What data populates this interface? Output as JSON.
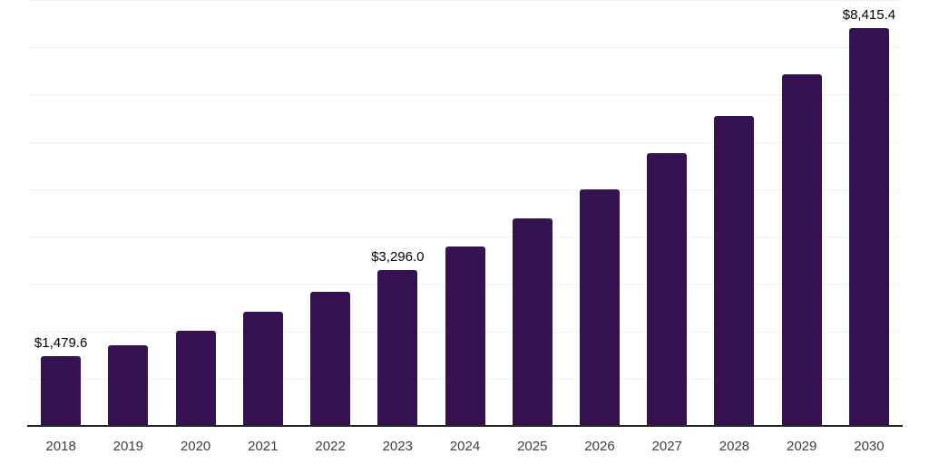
{
  "chart_data": {
    "type": "bar",
    "title": "",
    "xlabel": "",
    "ylabel": "",
    "categories": [
      "2018",
      "2019",
      "2020",
      "2021",
      "2022",
      "2023",
      "2024",
      "2025",
      "2026",
      "2027",
      "2028",
      "2029",
      "2030"
    ],
    "values": [
      1479.6,
      1705.0,
      2010.0,
      2420.0,
      2835.0,
      3296.0,
      3800.0,
      4390.0,
      5005.0,
      5755.0,
      6540.0,
      7430.0,
      8415.4
    ],
    "data_labels": [
      "$1,479.6",
      null,
      null,
      null,
      null,
      "$3,296.0",
      null,
      null,
      null,
      null,
      null,
      null,
      "$8,415.4"
    ],
    "ylim": [
      0,
      9000
    ],
    "gridline_step": 1000,
    "grid": "horizontal",
    "legend": "none",
    "colors": {
      "bar": "#341151",
      "gridline": "#f2f2f2",
      "axis_line": "#262626",
      "tick_label": "#404040",
      "data_label": "#000000",
      "background": "#ffffff"
    }
  }
}
